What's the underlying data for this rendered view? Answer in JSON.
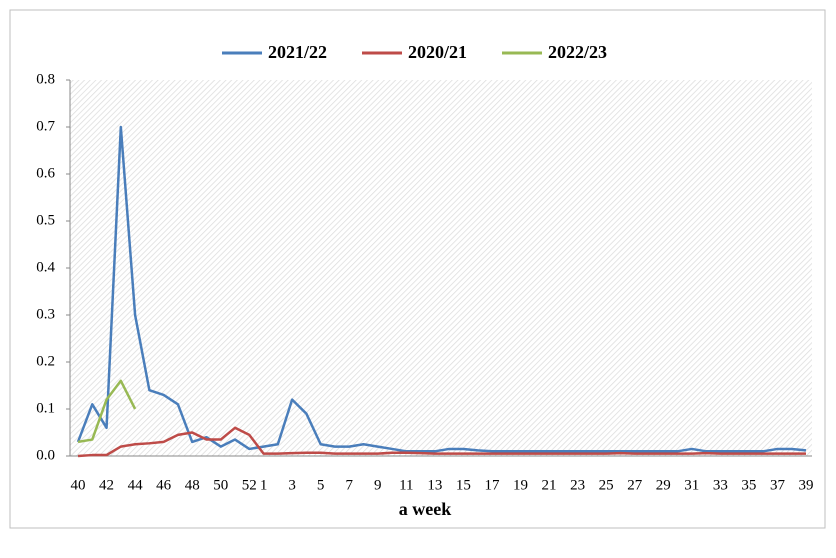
{
  "chart_data": {
    "type": "line",
    "x_label": "a week",
    "categories": [
      "40",
      null,
      "42",
      null,
      "44",
      null,
      "46",
      null,
      "48",
      null,
      "50",
      null,
      "52",
      "1",
      null,
      "3",
      null,
      "5",
      null,
      "7",
      null,
      "9",
      null,
      "11",
      null,
      "13",
      null,
      "15",
      null,
      "17",
      null,
      "19",
      null,
      "21",
      null,
      "23",
      null,
      "25",
      null,
      "27",
      null,
      "29",
      null,
      "31",
      null,
      "33",
      null,
      "35",
      null,
      "37",
      null,
      "39"
    ],
    "series": [
      {
        "name": "2021/22",
        "color": "#4a7ebb",
        "values": [
          0.03,
          0.11,
          0.06,
          0.7,
          0.3,
          0.14,
          0.13,
          0.11,
          0.03,
          0.04,
          0.02,
          0.035,
          0.015,
          0.02,
          0.025,
          0.12,
          0.09,
          0.025,
          0.02,
          0.02,
          0.025,
          0.02,
          0.015,
          0.01,
          0.01,
          0.01,
          0.015,
          0.015,
          0.012,
          0.01,
          0.01,
          0.01,
          0.01,
          0.01,
          0.01,
          0.01,
          0.01,
          0.01,
          0.01,
          0.01,
          0.01,
          0.01,
          0.01,
          0.015,
          0.01,
          0.01,
          0.01,
          0.01,
          0.01,
          0.015,
          0.015,
          0.012
        ]
      },
      {
        "name": "2020/21",
        "color": "#be4b48",
        "values": [
          0,
          0.002,
          0.002,
          0.02,
          0.025,
          0.027,
          0.03,
          0.045,
          0.05,
          0.035,
          0.035,
          0.06,
          0.045,
          0.005,
          0.005,
          0.006,
          0.007,
          0.007,
          0.005,
          0.005,
          0.005,
          0.005,
          0.007,
          0.007,
          0.006,
          0.005,
          0.005,
          0.005,
          0.005,
          0.005,
          0.005,
          0.005,
          0.005,
          0.005,
          0.005,
          0.005,
          0.005,
          0.005,
          0.006,
          0.005,
          0.005,
          0.005,
          0.005,
          0.005,
          0.006,
          0.005,
          0.005,
          0.005,
          0.005,
          0.005,
          0.005,
          0.005
        ]
      },
      {
        "name": "2022/23",
        "color": "#98b954",
        "values": [
          0.03,
          0.035,
          0.12,
          0.16,
          0.1,
          null,
          null,
          null,
          null,
          null,
          null,
          null,
          null,
          null,
          null,
          null,
          null,
          null,
          null,
          null,
          null,
          null,
          null,
          null,
          null,
          null,
          null,
          null,
          null,
          null,
          null,
          null,
          null,
          null,
          null,
          null,
          null,
          null,
          null,
          null,
          null,
          null,
          null,
          null,
          null,
          null,
          null,
          null,
          null,
          null,
          null,
          null
        ]
      }
    ],
    "ylim": [
      0,
      0.8
    ],
    "yticks": [
      {
        "value": 0,
        "label": "0.0"
      },
      0.1,
      0.2,
      0.3,
      0.4,
      0.5,
      0.6,
      0.7,
      0.8
    ],
    "grid": false,
    "legend": "top"
  }
}
